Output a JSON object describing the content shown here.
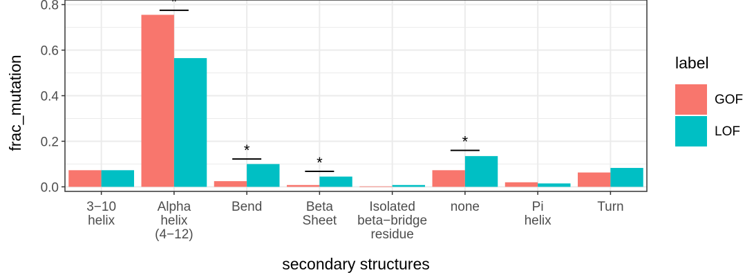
{
  "chart_data": {
    "type": "bar",
    "xlabel": "secondary structures",
    "ylabel": "frac_mutation",
    "ylim": [
      -0.02,
      0.82
    ],
    "yticks": [
      0.0,
      0.2,
      0.4,
      0.6,
      0.8
    ],
    "ytick_labels": [
      "0.0",
      "0.2",
      "0.4",
      "0.6",
      "0.8"
    ],
    "grid": true,
    "legend_position": "right",
    "categories": [
      {
        "label_lines": [
          "3−10",
          "helix"
        ]
      },
      {
        "label_lines": [
          "Alpha",
          "helix",
          "(4−12)"
        ]
      },
      {
        "label_lines": [
          "Bend"
        ]
      },
      {
        "label_lines": [
          "Beta",
          "Sheet"
        ]
      },
      {
        "label_lines": [
          "Isolated",
          "beta−bridge",
          "residue"
        ]
      },
      {
        "label_lines": [
          "none"
        ]
      },
      {
        "label_lines": [
          "Pi",
          "helix"
        ]
      },
      {
        "label_lines": [
          "Turn"
        ]
      }
    ],
    "legend": {
      "title": "label",
      "entries": [
        {
          "name": "GOF",
          "color": "#F8766D"
        },
        {
          "name": "LOF",
          "color": "#00BFC4"
        }
      ]
    },
    "series": [
      {
        "name": "GOF",
        "color": "#F8766D",
        "values": [
          0.073,
          0.755,
          0.025,
          0.008,
          0.002,
          0.073,
          0.02,
          0.063
        ]
      },
      {
        "name": "LOF",
        "color": "#00BFC4",
        "values": [
          0.073,
          0.565,
          0.1,
          0.045,
          0.008,
          0.135,
          0.015,
          0.083
        ]
      }
    ],
    "significance": [
      {
        "category_index": 1,
        "line_y": 0.775,
        "symbol": "*"
      },
      {
        "category_index": 2,
        "line_y": 0.122,
        "symbol": "*"
      },
      {
        "category_index": 3,
        "line_y": 0.068,
        "symbol": "*"
      },
      {
        "category_index": 5,
        "line_y": 0.16,
        "symbol": "*"
      }
    ]
  }
}
